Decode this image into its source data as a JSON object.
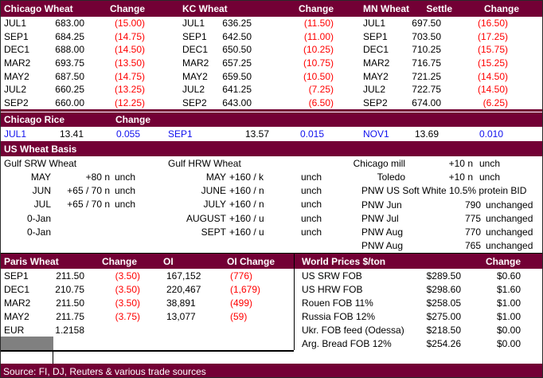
{
  "colors": {
    "maroon": "#730035",
    "negative_red": "#FF0000",
    "rice_blue": "#1111EE",
    "gray_box": "#808080"
  },
  "futures": {
    "groups": [
      {
        "title": "Chicago Wheat",
        "change_label": "Change",
        "rows": [
          [
            "JUL1",
            "683.00",
            "(15.00)"
          ],
          [
            "SEP1",
            "684.25",
            "(14.75)"
          ],
          [
            "DEC1",
            "688.00",
            "(14.50)"
          ],
          [
            "MAR2",
            "693.75",
            "(13.50)"
          ],
          [
            "MAY2",
            "687.50",
            "(14.75)"
          ],
          [
            "JUL2",
            "660.25",
            "(13.25)"
          ],
          [
            "SEP2",
            "660.00",
            "(12.25)"
          ]
        ]
      },
      {
        "title": "KC Wheat",
        "change_label": "Change",
        "rows": [
          [
            "JUL1",
            "636.25",
            "(11.50)"
          ],
          [
            "SEP1",
            "642.50",
            "(11.00)"
          ],
          [
            "DEC1",
            "650.50",
            "(10.25)"
          ],
          [
            "MAR2",
            "657.25",
            "(10.75)"
          ],
          [
            "MAY2",
            "659.50",
            "(10.50)"
          ],
          [
            "JUL2",
            "641.25",
            "(7.25)"
          ],
          [
            "SEP2",
            "643.00",
            "(6.50)"
          ]
        ]
      },
      {
        "title": "MN Wheat",
        "settle_label": "Settle",
        "change_label": "Change",
        "rows": [
          [
            "JUL1",
            "697.50",
            "(16.50)"
          ],
          [
            "SEP1",
            "703.50",
            "(17.25)"
          ],
          [
            "DEC1",
            "710.25",
            "(15.75)"
          ],
          [
            "MAR2",
            "716.75",
            "(15.25)"
          ],
          [
            "MAY2",
            "721.25",
            "(14.50)"
          ],
          [
            "JUL2",
            "722.75",
            "(14.50)"
          ],
          [
            "SEP2",
            "674.00",
            "(6.25)"
          ]
        ]
      }
    ]
  },
  "rice": {
    "title": "Chicago Rice",
    "change_label": "Change",
    "contracts": [
      {
        "month": "JUL1",
        "price": "13.41",
        "change": "0.055"
      },
      {
        "month": "SEP1",
        "price": "13.57",
        "change": "0.015"
      },
      {
        "month": "NOV1",
        "price": "13.69",
        "change": "0.010"
      }
    ]
  },
  "basis": {
    "title": "US Wheat Basis",
    "gulf_srw": {
      "title": "Gulf SRW Wheat",
      "rows": [
        [
          "MAY",
          "+80 n",
          "unch"
        ],
        [
          "JUN",
          "+65 / 70 n",
          "unch"
        ],
        [
          "JUL",
          "+65 / 70 n",
          "unch"
        ],
        [
          "0-Jan",
          "",
          ""
        ],
        [
          "0-Jan",
          "",
          ""
        ]
      ]
    },
    "gulf_hrw": {
      "title": "Gulf HRW Wheat",
      "rows": [
        [
          "MAY",
          "+160 / k",
          "unch"
        ],
        [
          "JUNE",
          "+160 / n",
          "unch"
        ],
        [
          "JULY",
          "+160 / n",
          "unch"
        ],
        [
          "AUGUST",
          "+160 / u",
          "unch"
        ],
        [
          "SEPT",
          "+160 / u",
          "unch"
        ]
      ]
    },
    "domestic": {
      "mill_rows": [
        [
          "Chicago mill",
          "+10 n",
          "unch"
        ],
        [
          "Toledo",
          "+10 n",
          "unch"
        ]
      ],
      "pnw_note": "PNW US Soft White 10.5% protein BID",
      "pnw_rows": [
        [
          "PNW Jun",
          "790",
          "unchanged"
        ],
        [
          "PNW Jul",
          "775",
          "unchanged"
        ],
        [
          "PNW Aug",
          "770",
          "unchanged"
        ],
        [
          "PNW Aug",
          "765",
          "unchanged"
        ]
      ]
    }
  },
  "paris": {
    "title": "Paris Wheat",
    "change_label": "Change",
    "oi_label": "OI",
    "oi_change_label": "OI Change",
    "rows": [
      [
        "SEP1",
        "211.50",
        "(3.50)",
        "167,152",
        "(776)"
      ],
      [
        "DEC1",
        "210.75",
        "(3.50)",
        "220,467",
        "(1,679)"
      ],
      [
        "MAR2",
        "211.50",
        "(3.50)",
        "38,891",
        "(499)"
      ],
      [
        "MAY2",
        "211.75",
        "(3.75)",
        "13,077",
        "(59)"
      ]
    ],
    "eur": {
      "label": "EUR",
      "value": "1.2158"
    }
  },
  "world": {
    "title": "World Prices $/ton",
    "change_label": "Change",
    "rows": [
      [
        "US SRW FOB",
        "$289.50",
        "$0.60"
      ],
      [
        "US HRW FOB",
        "$298.60",
        "$1.60"
      ],
      [
        "Rouen FOB 11%",
        "$258.05",
        "$1.00"
      ],
      [
        "Russia FOB 12%",
        "$275.00",
        "$1.00"
      ],
      [
        "Ukr. FOB feed (Odessa)",
        "$218.50",
        "$0.00"
      ],
      [
        "Arg. Bread FOB 12%",
        "$254.26",
        "$0.00"
      ]
    ]
  },
  "source": "Source: FI, DJ, Reuters & various trade sources"
}
